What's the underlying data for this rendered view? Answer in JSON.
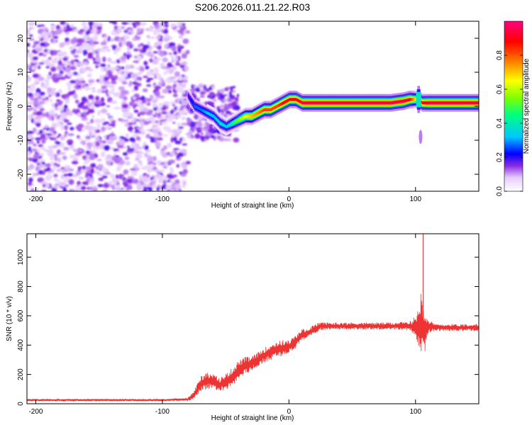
{
  "title": "S206.2026.011.21.22.R03",
  "chart_data": [
    {
      "type": "heatmap",
      "title": "S206.2026.011.21.22.R03",
      "xlabel": "Height of straight line (km)",
      "ylabel": "Frequency (Hz)",
      "xlim": [
        -207,
        150
      ],
      "ylim": [
        -25,
        25
      ],
      "x_ticks": [
        -200,
        -100,
        0,
        100
      ],
      "y_ticks": [
        -20,
        -10,
        0,
        10,
        20
      ],
      "colorbar": {
        "label": "Normalized spectral amplitude",
        "range": [
          0,
          1
        ],
        "ticks": [
          0.0,
          0.2,
          0.4,
          0.6,
          0.8
        ],
        "colors": [
          "#ffffff",
          "#e6ccff",
          "#8a2be2",
          "#0000ff",
          "#00c8ff",
          "#00ff80",
          "#80ff00",
          "#ffff00",
          "#ff8000",
          "#ff0000",
          "#ff0080"
        ]
      },
      "noise_region": {
        "x": [
          -207,
          -80
        ],
        "amplitude": 0.2
      },
      "ridge": {
        "x": [
          -80,
          -75,
          -70,
          -65,
          -60,
          -55,
          -50,
          -45,
          -40,
          -35,
          -30,
          -25,
          -20,
          -15,
          -10,
          -5,
          0,
          5,
          10,
          20,
          40,
          60,
          80,
          90,
          95,
          100,
          105,
          110,
          130,
          150
        ],
        "frequency": [
          3,
          0,
          -1,
          -2,
          -3,
          -5,
          -6,
          -5,
          -4,
          -3,
          -3,
          -2,
          -1,
          -1,
          0,
          1,
          2,
          2,
          1,
          1,
          1,
          1,
          1,
          1.5,
          2,
          2,
          1,
          1,
          1,
          1
        ],
        "amplitude": [
          0.25,
          0.35,
          0.35,
          0.4,
          0.4,
          0.45,
          0.4,
          0.5,
          0.6,
          0.7,
          0.75,
          0.8,
          0.85,
          0.85,
          0.85,
          0.9,
          0.9,
          0.9,
          0.95,
          0.95,
          0.95,
          0.95,
          0.95,
          0.95,
          0.9,
          0.7,
          0.9,
          0.95,
          0.95,
          0.95
        ]
      }
    },
    {
      "type": "line",
      "xlabel": "Height of straight line (km)",
      "ylabel": "SNR (10 * v/v)",
      "xlim": [
        -207,
        150
      ],
      "ylim": [
        0,
        1160
      ],
      "x_ticks": [
        -200,
        -100,
        0,
        100
      ],
      "y_ticks": [
        0,
        200,
        400,
        600,
        800,
        1000
      ],
      "series": [
        {
          "name": "SNR",
          "color": "#ee3333",
          "x": [
            -207,
            -150,
            -100,
            -80,
            -75,
            -70,
            -65,
            -60,
            -55,
            -50,
            -45,
            -40,
            -35,
            -30,
            -25,
            -20,
            -15,
            -10,
            -5,
            0,
            5,
            10,
            15,
            20,
            25,
            30,
            40,
            60,
            80,
            95,
            100,
            103,
            105,
            106,
            108,
            110,
            115,
            130,
            150
          ],
          "center": [
            25,
            25,
            25,
            30,
            60,
            130,
            160,
            150,
            130,
            150,
            180,
            230,
            260,
            270,
            300,
            330,
            350,
            370,
            380,
            390,
            420,
            470,
            480,
            510,
            530,
            530,
            530,
            530,
            530,
            530,
            530,
            530,
            560,
            500,
            500,
            530,
            520,
            520,
            520
          ],
          "spread": [
            15,
            15,
            15,
            20,
            60,
            120,
            120,
            110,
            90,
            110,
            130,
            130,
            120,
            100,
            100,
            100,
            110,
            110,
            110,
            90,
            90,
            80,
            70,
            60,
            60,
            50,
            50,
            50,
            50,
            60,
            140,
            300,
            600,
            420,
            300,
            100,
            50,
            50,
            50
          ]
        }
      ]
    }
  ]
}
